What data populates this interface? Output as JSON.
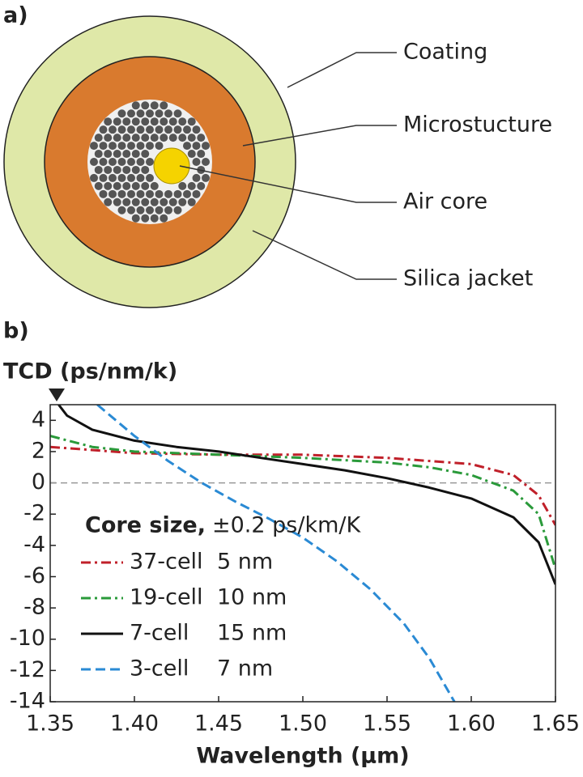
{
  "diagram": {
    "panel_label": "a)",
    "callouts": [
      "Coating",
      "Microstucture",
      "Air core",
      "Silica jacket"
    ]
  },
  "chart_data": {
    "type": "line",
    "panel_label": "b)",
    "y_label": "TCD (ps/nm/k)",
    "x_label": "Wavelength (µm)",
    "xlim": [
      1.35,
      1.65
    ],
    "xticks": [
      1.35,
      {
        "value": 1.4,
        "label": "1.40"
      },
      1.45,
      {
        "value": 1.5,
        "label": "1.50"
      },
      1.55,
      {
        "value": 1.6,
        "label": "1.60"
      },
      1.65
    ],
    "ylim": [
      -14,
      5
    ],
    "yticks": [
      -14,
      -12,
      -10,
      -8,
      -6,
      -4,
      -2,
      0,
      2,
      4
    ],
    "zero_line": true,
    "legend_title": "Core size,",
    "legend_accuracy_title": "±0.2 ps/km/K",
    "series": [
      {
        "name": "37-cell",
        "accuracy": "5 nm",
        "color": "#c0202a",
        "dash": "dashdot",
        "x": [
          1.35,
          1.4,
          1.45,
          1.5,
          1.55,
          1.6,
          1.625,
          1.64,
          1.65
        ],
        "values": [
          2.3,
          1.9,
          1.8,
          1.8,
          1.6,
          1.2,
          0.5,
          -0.8,
          -2.7
        ]
      },
      {
        "name": "19-cell",
        "accuracy": "10 nm",
        "color": "#2a9a3a",
        "dash": "dashdot",
        "x": [
          1.35,
          1.375,
          1.4,
          1.45,
          1.5,
          1.55,
          1.575,
          1.6,
          1.625,
          1.64,
          1.65
        ],
        "values": [
          3.0,
          2.3,
          2.0,
          1.8,
          1.6,
          1.3,
          1.0,
          0.5,
          -0.5,
          -2.0,
          -5.5
        ]
      },
      {
        "name": "7-cell",
        "accuracy": "15 nm",
        "color": "#111111",
        "dash": "solid",
        "x": [
          1.355,
          1.36,
          1.375,
          1.4,
          1.425,
          1.45,
          1.475,
          1.5,
          1.525,
          1.55,
          1.575,
          1.6,
          1.625,
          1.64,
          1.65
        ],
        "values": [
          5,
          4.3,
          3.4,
          2.7,
          2.3,
          2.0,
          1.6,
          1.2,
          0.8,
          0.3,
          -0.3,
          -1.0,
          -2.2,
          -3.8,
          -6.5
        ]
      },
      {
        "name": "3-cell",
        "accuracy": "7 nm",
        "color": "#2a8ad4",
        "dash": "dashed",
        "x": [
          1.378,
          1.4,
          1.42,
          1.44,
          1.46,
          1.48,
          1.5,
          1.52,
          1.54,
          1.56,
          1.575,
          1.59
        ],
        "values": [
          5,
          3.0,
          1.4,
          0,
          -1.2,
          -2.3,
          -3.5,
          -5.0,
          -6.8,
          -9.0,
          -11.2,
          -14
        ]
      }
    ]
  }
}
